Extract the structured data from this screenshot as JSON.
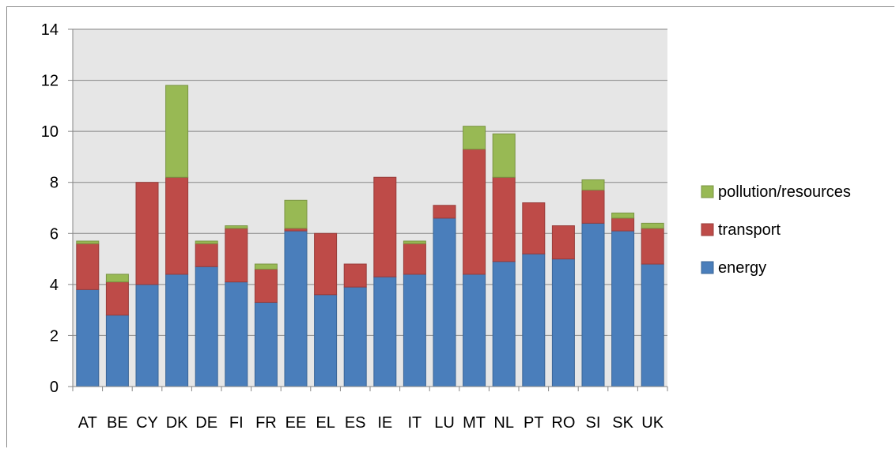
{
  "chart_data": {
    "type": "bar",
    "stacked": true,
    "categories": [
      "AT",
      "BE",
      "CY",
      "DK",
      "DE",
      "FI",
      "FR",
      "EE",
      "EL",
      "ES",
      "IE",
      "IT",
      "LU",
      "MT",
      "NL",
      "PT",
      "RO",
      "SI",
      "SK",
      "UK"
    ],
    "series": [
      {
        "name": "energy",
        "color": "#4a7ebb",
        "values": [
          3.8,
          2.8,
          4.0,
          4.4,
          4.7,
          4.1,
          3.3,
          6.1,
          3.6,
          3.9,
          4.3,
          4.4,
          6.6,
          4.4,
          4.9,
          5.2,
          5.0,
          6.4,
          6.1,
          4.8
        ]
      },
      {
        "name": "transport",
        "color": "#be4b48",
        "values": [
          1.8,
          1.3,
          4.0,
          3.8,
          0.9,
          2.1,
          1.3,
          0.1,
          2.4,
          0.9,
          3.9,
          1.2,
          0.5,
          4.9,
          3.3,
          2.0,
          1.3,
          1.3,
          0.5,
          1.4
        ]
      },
      {
        "name": "pollution/resources",
        "color": "#98b954",
        "values": [
          0.1,
          0.3,
          0.0,
          3.6,
          0.1,
          0.1,
          0.2,
          1.1,
          0.0,
          0.0,
          0.0,
          0.1,
          0.0,
          0.9,
          1.7,
          0.0,
          0.0,
          0.4,
          0.2,
          0.2
        ]
      }
    ],
    "ylim": [
      0,
      14
    ],
    "yticks": [
      "0",
      "2",
      "4",
      "6",
      "8",
      "10",
      "12",
      "14"
    ],
    "grid": true,
    "legend_position": "right",
    "plot_background": "#e6e6e6"
  }
}
